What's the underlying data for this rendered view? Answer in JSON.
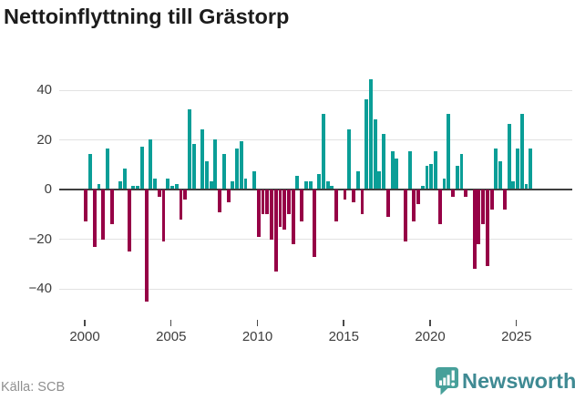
{
  "title": "Nettoinflyttning till Grästorp",
  "source": "Källa: SCB",
  "logo": {
    "text": "Newsworthy",
    "icon": "bar-chart-speech-bubble"
  },
  "colors": {
    "positive_bar": "#0a9e97",
    "negative_bar": "#960046",
    "zero_axis": "#3f3f3f",
    "gridline": "#e2e2e2",
    "title_text": "#1c1c1c",
    "tick_label": "#3d3d3d",
    "source_text": "#8f8f8f",
    "logo_icon": "#47a09a",
    "logo_text": "#3f8a93"
  },
  "chart_data": {
    "type": "bar",
    "title": "Nettoinflyttning till Grästorp",
    "xlabel": "",
    "ylabel": "",
    "frequency": "quarterly",
    "x_start": "2000-Q1",
    "x_end": "2025-Q4",
    "ylim": [
      -50,
      48
    ],
    "grid": true,
    "legend": false,
    "y_ticks": [
      {
        "label": "40",
        "value": 40
      },
      {
        "label": "20",
        "value": 20
      },
      {
        "label": "0",
        "value": 0
      },
      {
        "label": "−20",
        "value": -20
      },
      {
        "label": "−40",
        "value": -40
      }
    ],
    "x_ticks": [
      {
        "label": "2000",
        "year": 2000
      },
      {
        "label": "2005",
        "year": 2005
      },
      {
        "label": "2010",
        "year": 2010
      },
      {
        "label": "2015",
        "year": 2015
      },
      {
        "label": "2020",
        "year": 2020
      },
      {
        "label": "2025",
        "year": 2025
      }
    ],
    "series_by_year": [
      {
        "year": 2000,
        "q": [
          -13,
          14,
          -23,
          2
        ]
      },
      {
        "year": 2001,
        "q": [
          -20,
          16,
          -14,
          0
        ]
      },
      {
        "year": 2002,
        "q": [
          3,
          8,
          -25,
          1
        ]
      },
      {
        "year": 2003,
        "q": [
          1,
          17,
          -45,
          20
        ]
      },
      {
        "year": 2004,
        "q": [
          4,
          -3,
          -21,
          4
        ]
      },
      {
        "year": 2005,
        "q": [
          1,
          2,
          -12,
          -4
        ]
      },
      {
        "year": 2006,
        "q": [
          32,
          18,
          0,
          24
        ]
      },
      {
        "year": 2007,
        "q": [
          11,
          3,
          20,
          -9
        ]
      },
      {
        "year": 2008,
        "q": [
          14,
          -5,
          3,
          16
        ]
      },
      {
        "year": 2009,
        "q": [
          19,
          4,
          0,
          7
        ]
      },
      {
        "year": 2010,
        "q": [
          -19,
          -10,
          -10,
          -20
        ]
      },
      {
        "year": 2011,
        "q": [
          -33,
          -15,
          -16,
          -10
        ]
      },
      {
        "year": 2012,
        "q": [
          -22,
          5,
          -13,
          3
        ]
      },
      {
        "year": 2013,
        "q": [
          3,
          -27,
          6,
          30
        ]
      },
      {
        "year": 2014,
        "q": [
          3,
          1,
          -13,
          0
        ]
      },
      {
        "year": 2015,
        "q": [
          -4,
          24,
          -5,
          7
        ]
      },
      {
        "year": 2016,
        "q": [
          -10,
          36,
          44,
          28
        ]
      },
      {
        "year": 2017,
        "q": [
          7,
          22,
          -11,
          15
        ]
      },
      {
        "year": 2018,
        "q": [
          12,
          0,
          -21,
          15
        ]
      },
      {
        "year": 2019,
        "q": [
          -13,
          -6,
          1,
          9
        ]
      },
      {
        "year": 2020,
        "q": [
          10,
          15,
          -14,
          4
        ]
      },
      {
        "year": 2021,
        "q": [
          30,
          -3,
          9,
          14
        ]
      },
      {
        "year": 2022,
        "q": [
          -3,
          0,
          -32,
          -22
        ]
      },
      {
        "year": 2023,
        "q": [
          -14,
          -31,
          -8,
          16
        ]
      },
      {
        "year": 2024,
        "q": [
          11,
          -8,
          26,
          3
        ]
      },
      {
        "year": 2025,
        "q": [
          16,
          30,
          2,
          16
        ]
      }
    ]
  }
}
